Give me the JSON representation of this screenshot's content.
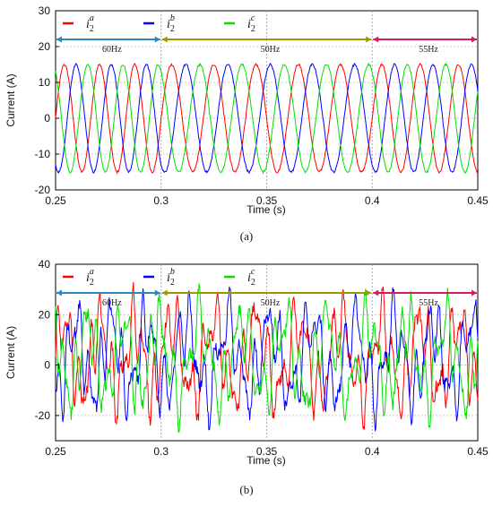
{
  "chart_data": [
    {
      "panel": "a",
      "type": "line",
      "caption": "(a)",
      "xlabel": "Time (s)",
      "ylabel": "Current (A)",
      "xlim": [
        0.25,
        0.45
      ],
      "ylim": [
        -20,
        30
      ],
      "xticks": [
        "0.25",
        "0.3",
        "0.35",
        "0.4",
        "0.45"
      ],
      "yticks": [
        "-20",
        "-10",
        "0",
        "10",
        "20",
        "30"
      ],
      "grid": "dotted",
      "series": [
        {
          "name_base": "i",
          "sub": "2",
          "sup": "a",
          "color": "#ff0000",
          "amplitude": 15,
          "phase_deg": 0
        },
        {
          "name_base": "i",
          "sub": "2",
          "sup": "b",
          "color": "#0000ff",
          "amplitude": 15,
          "phase_deg": -120
        },
        {
          "name_base": "i",
          "sub": "2",
          "sup": "c",
          "color": "#00e000",
          "amplitude": 15,
          "phase_deg": 120
        }
      ],
      "segments": [
        {
          "label": "60Hz",
          "start": 0.25,
          "end": 0.3,
          "freq_hz": 60,
          "color": "#2e86c1"
        },
        {
          "label": "50Hz",
          "start": 0.3,
          "end": 0.4,
          "freq_hz": 50,
          "color": "#9a9a00"
        },
        {
          "label": "55Hz",
          "start": 0.4,
          "end": 0.45,
          "freq_hz": 55,
          "color": "#d81b60"
        }
      ],
      "boundaries": [
        0.3,
        0.4
      ]
    },
    {
      "panel": "b",
      "type": "line",
      "caption": "(b)",
      "xlabel": "Time (s)",
      "ylabel": "Current (A)",
      "xlim": [
        0.25,
        0.45
      ],
      "ylim": [
        -30,
        40
      ],
      "xticks": [
        "0.25",
        "0.3",
        "0.35",
        "0.4",
        "0.45"
      ],
      "yticks": [
        "-20",
        "0",
        "20",
        "40"
      ],
      "grid": "dotted",
      "series": [
        {
          "name_base": "i",
          "sub": "2",
          "sup": "a",
          "color": "#ff0000",
          "amplitude": 25,
          "phase_deg": 0
        },
        {
          "name_base": "i",
          "sub": "2",
          "sup": "b",
          "color": "#0000ff",
          "amplitude": 25,
          "phase_deg": -120
        },
        {
          "name_base": "i",
          "sub": "2",
          "sup": "c",
          "color": "#00e000",
          "amplitude": 25,
          "phase_deg": 120
        }
      ],
      "segments": [
        {
          "label": "60Hz",
          "start": 0.25,
          "end": 0.3,
          "freq_hz": 60,
          "color": "#2e86c1"
        },
        {
          "label": "50Hz",
          "start": 0.3,
          "end": 0.4,
          "freq_hz": 50,
          "color": "#9a9a00"
        },
        {
          "label": "55Hz",
          "start": 0.4,
          "end": 0.45,
          "freq_hz": 55,
          "color": "#d81b60"
        }
      ],
      "boundaries": [
        0.3,
        0.4
      ]
    }
  ]
}
